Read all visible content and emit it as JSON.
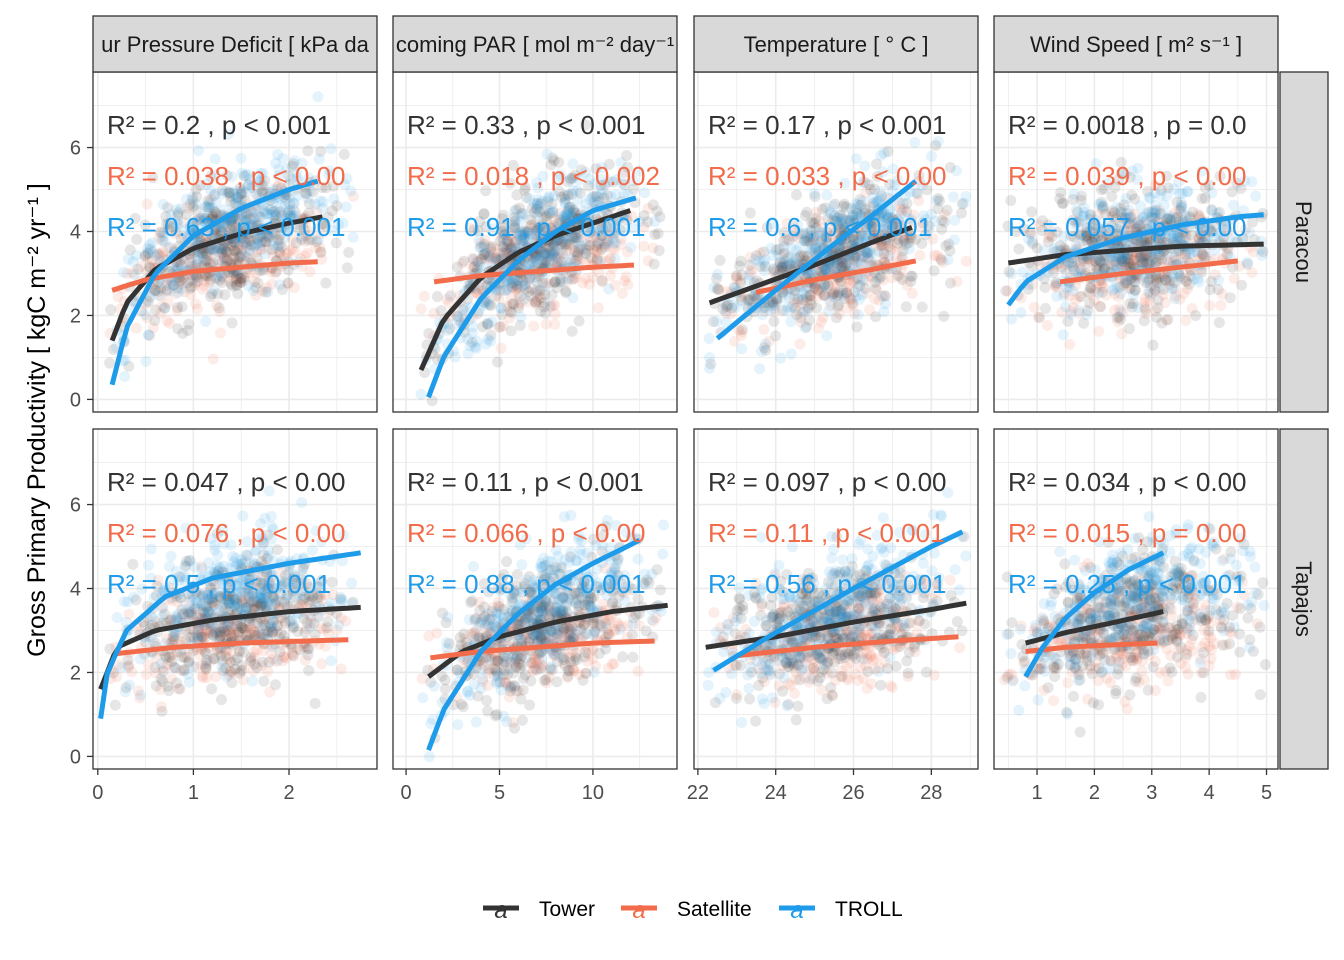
{
  "chart_data": {
    "type": "scatter",
    "title": "",
    "ylabel": "Gross Primary Productivity [ kgC m⁻² yr⁻¹ ]",
    "ylim": [
      -0.3,
      7.8
    ],
    "y_ticks": [
      "0",
      "2",
      "4",
      "6"
    ],
    "grid": true,
    "legend": {
      "position": "bottom",
      "entries": [
        {
          "name": "Tower",
          "color": "#333333"
        },
        {
          "name": "Satellite",
          "color": "#F26B4A"
        },
        {
          "name": "TROLL",
          "color": "#1E9BE9"
        }
      ]
    },
    "rows": [
      "Paracou",
      "Tapajos"
    ],
    "columns": [
      {
        "strip": "ur Pressure Deficit [ kPa da",
        "xlim": [
          -0.05,
          2.92
        ],
        "x_ticks": [
          0,
          1,
          2
        ],
        "x_tick_labels": [
          "0",
          "1",
          "2"
        ],
        "x_range": [
          0.1,
          2.7
        ]
      },
      {
        "strip": "coming PAR [ mol m⁻² day⁻¹",
        "xlim": [
          -0.7,
          14.5
        ],
        "x_ticks": [
          0,
          5,
          10
        ],
        "x_tick_labels": [
          "0",
          "5",
          "10"
        ],
        "x_range": [
          0.8,
          13.8
        ]
      },
      {
        "strip": "Temperature [ ° C ]",
        "xlim": [
          21.9,
          29.2
        ],
        "x_ticks": [
          22,
          24,
          26,
          28
        ],
        "x_tick_labels": [
          "22",
          "24",
          "26",
          "28"
        ],
        "x_range": [
          22.2,
          28.9
        ]
      },
      {
        "strip": "Wind Speed [ m² s⁻¹ ]",
        "xlim": [
          0.25,
          5.2
        ],
        "x_ticks": [
          1,
          2,
          3,
          4,
          5
        ],
        "x_tick_labels": [
          "1",
          "2",
          "3",
          "4",
          "5"
        ],
        "x_range": [
          0.4,
          5.0
        ]
      }
    ],
    "annotations": [
      [
        [
          "R² = 0.2 , p < 0.001",
          "R² = 0.038 , p < 0.00",
          "R² = 0.63 , p < 0.001"
        ],
        [
          "R² = 0.33 , p < 0.001",
          "R² = 0.018 , p < 0.002",
          "R² = 0.91 , p < 0.001"
        ],
        [
          "R² = 0.17 , p < 0.001",
          "R² = 0.033 , p < 0.00",
          "R² = 0.6 , p < 0.001"
        ],
        [
          "R² = 0.0018 , p = 0.0",
          "R² = 0.039 , p < 0.00",
          "R² = 0.057 , p < 0.00"
        ]
      ],
      [
        [
          "R² = 0.047 , p < 0.00",
          "R² = 0.076 , p < 0.00",
          "R² = 0.5 , p < 0.001"
        ],
        [
          "R² = 0.11 , p < 0.001",
          "R² = 0.066 , p < 0.00",
          "R² = 0.88 , p < 0.001"
        ],
        [
          "R² = 0.097 , p < 0.00",
          "R² = 0.11 , p < 0.001",
          "R² = 0.56 , p < 0.001"
        ],
        [
          "R² = 0.034 , p < 0.00",
          "R² = 0.015 , p = 0.00",
          "R² = 0.25 , p < 0.001"
        ]
      ]
    ],
    "series": [
      "Tower",
      "Satellite",
      "TROLL"
    ],
    "fits": [
      [
        {
          "Tower": [
            [
              0.15,
              1.4
            ],
            [
              0.3,
              2.3
            ],
            [
              0.6,
              3.1
            ],
            [
              1.0,
              3.6
            ],
            [
              1.5,
              3.95
            ],
            [
              2.0,
              4.2
            ],
            [
              2.35,
              4.35
            ]
          ],
          "Satellite": [
            [
              0.15,
              2.6
            ],
            [
              0.5,
              2.85
            ],
            [
              1.0,
              3.05
            ],
            [
              1.5,
              3.15
            ],
            [
              2.0,
              3.25
            ],
            [
              2.3,
              3.28
            ]
          ],
          "TROLL": [
            [
              0.15,
              0.35
            ],
            [
              0.3,
              1.7
            ],
            [
              0.6,
              3.0
            ],
            [
              1.0,
              3.9
            ],
            [
              1.5,
              4.55
            ],
            [
              2.0,
              5.0
            ],
            [
              2.3,
              5.2
            ]
          ]
        },
        {
          "Tower": [
            [
              0.8,
              0.7
            ],
            [
              2,
              1.9
            ],
            [
              4,
              2.9
            ],
            [
              6,
              3.5
            ],
            [
              8,
              3.9
            ],
            [
              10,
              4.2
            ],
            [
              12,
              4.5
            ]
          ],
          "Satellite": [
            [
              1.5,
              2.8
            ],
            [
              4,
              2.95
            ],
            [
              7,
              3.05
            ],
            [
              10,
              3.15
            ],
            [
              12.2,
              3.2
            ]
          ],
          "TROLL": [
            [
              1.2,
              0.05
            ],
            [
              2,
              1.0
            ],
            [
              4,
              2.4
            ],
            [
              6,
              3.3
            ],
            [
              8,
              4.0
            ],
            [
              10,
              4.5
            ],
            [
              12.3,
              4.8
            ]
          ]
        },
        {
          "Tower": [
            [
              22.3,
              2.3
            ],
            [
              23.5,
              2.7
            ],
            [
              25,
              3.2
            ],
            [
              26.5,
              3.75
            ],
            [
              27.5,
              4.1
            ]
          ],
          "Satellite": [
            [
              23.5,
              2.55
            ],
            [
              25,
              2.85
            ],
            [
              26.5,
              3.1
            ],
            [
              27.6,
              3.3
            ]
          ],
          "TROLL": [
            [
              22.5,
              1.45
            ],
            [
              24,
              2.6
            ],
            [
              25.5,
              3.7
            ],
            [
              26.5,
              4.4
            ],
            [
              27.6,
              5.2
            ]
          ]
        },
        {
          "Tower": [
            [
              0.5,
              3.25
            ],
            [
              1.5,
              3.45
            ],
            [
              2.5,
              3.55
            ],
            [
              3.5,
              3.65
            ],
            [
              4.95,
              3.7
            ]
          ],
          "Satellite": [
            [
              1.4,
              2.8
            ],
            [
              2.5,
              3.0
            ],
            [
              3.5,
              3.15
            ],
            [
              4.5,
              3.3
            ]
          ],
          "TROLL": [
            [
              0.5,
              2.25
            ],
            [
              0.8,
              2.8
            ],
            [
              1.5,
              3.4
            ],
            [
              2.5,
              3.85
            ],
            [
              3.5,
              4.15
            ],
            [
              4.5,
              4.35
            ],
            [
              4.95,
              4.4
            ]
          ]
        }
      ],
      [
        {
          "Tower": [
            [
              0.03,
              1.6
            ],
            [
              0.2,
              2.6
            ],
            [
              0.6,
              3.0
            ],
            [
              1.2,
              3.25
            ],
            [
              2.0,
              3.45
            ],
            [
              2.75,
              3.55
            ]
          ],
          "Satellite": [
            [
              0.2,
              2.45
            ],
            [
              0.8,
              2.6
            ],
            [
              1.5,
              2.7
            ],
            [
              2.2,
              2.75
            ],
            [
              2.62,
              2.78
            ]
          ],
          "TROLL": [
            [
              0.03,
              0.9
            ],
            [
              0.1,
              2.0
            ],
            [
              0.3,
              3.0
            ],
            [
              0.7,
              3.8
            ],
            [
              1.2,
              4.25
            ],
            [
              2.0,
              4.6
            ],
            [
              2.75,
              4.85
            ]
          ]
        },
        {
          "Tower": [
            [
              1.2,
              1.9
            ],
            [
              3,
              2.5
            ],
            [
              5,
              2.85
            ],
            [
              8,
              3.2
            ],
            [
              11,
              3.45
            ],
            [
              14,
              3.6
            ]
          ],
          "Satellite": [
            [
              1.3,
              2.35
            ],
            [
              4,
              2.5
            ],
            [
              7,
              2.6
            ],
            [
              10,
              2.7
            ],
            [
              13.3,
              2.75
            ]
          ],
          "TROLL": [
            [
              1.2,
              0.15
            ],
            [
              2,
              1.1
            ],
            [
              4,
              2.5
            ],
            [
              6,
              3.4
            ],
            [
              8,
              4.1
            ],
            [
              10,
              4.6
            ],
            [
              12.5,
              5.15
            ]
          ]
        },
        {
          "Tower": [
            [
              22.2,
              2.6
            ],
            [
              24,
              2.85
            ],
            [
              26,
              3.2
            ],
            [
              28,
              3.5
            ],
            [
              28.9,
              3.65
            ]
          ],
          "Satellite": [
            [
              23.0,
              2.4
            ],
            [
              25,
              2.6
            ],
            [
              27,
              2.75
            ],
            [
              28.7,
              2.85
            ]
          ],
          "TROLL": [
            [
              22.4,
              2.05
            ],
            [
              24,
              2.95
            ],
            [
              26,
              4.0
            ],
            [
              28,
              5.0
            ],
            [
              28.8,
              5.35
            ]
          ]
        },
        {
          "Tower": [
            [
              0.8,
              2.7
            ],
            [
              1.5,
              2.95
            ],
            [
              2.2,
              3.15
            ],
            [
              3.2,
              3.45
            ]
          ],
          "Satellite": [
            [
              0.8,
              2.5
            ],
            [
              1.5,
              2.6
            ],
            [
              2.2,
              2.65
            ],
            [
              3.1,
              2.7
            ]
          ],
          "TROLL": [
            [
              0.8,
              1.9
            ],
            [
              1.1,
              2.6
            ],
            [
              1.5,
              3.3
            ],
            [
              2.0,
              3.9
            ],
            [
              2.6,
              4.45
            ],
            [
              3.2,
              4.85
            ]
          ]
        }
      ]
    ]
  }
}
